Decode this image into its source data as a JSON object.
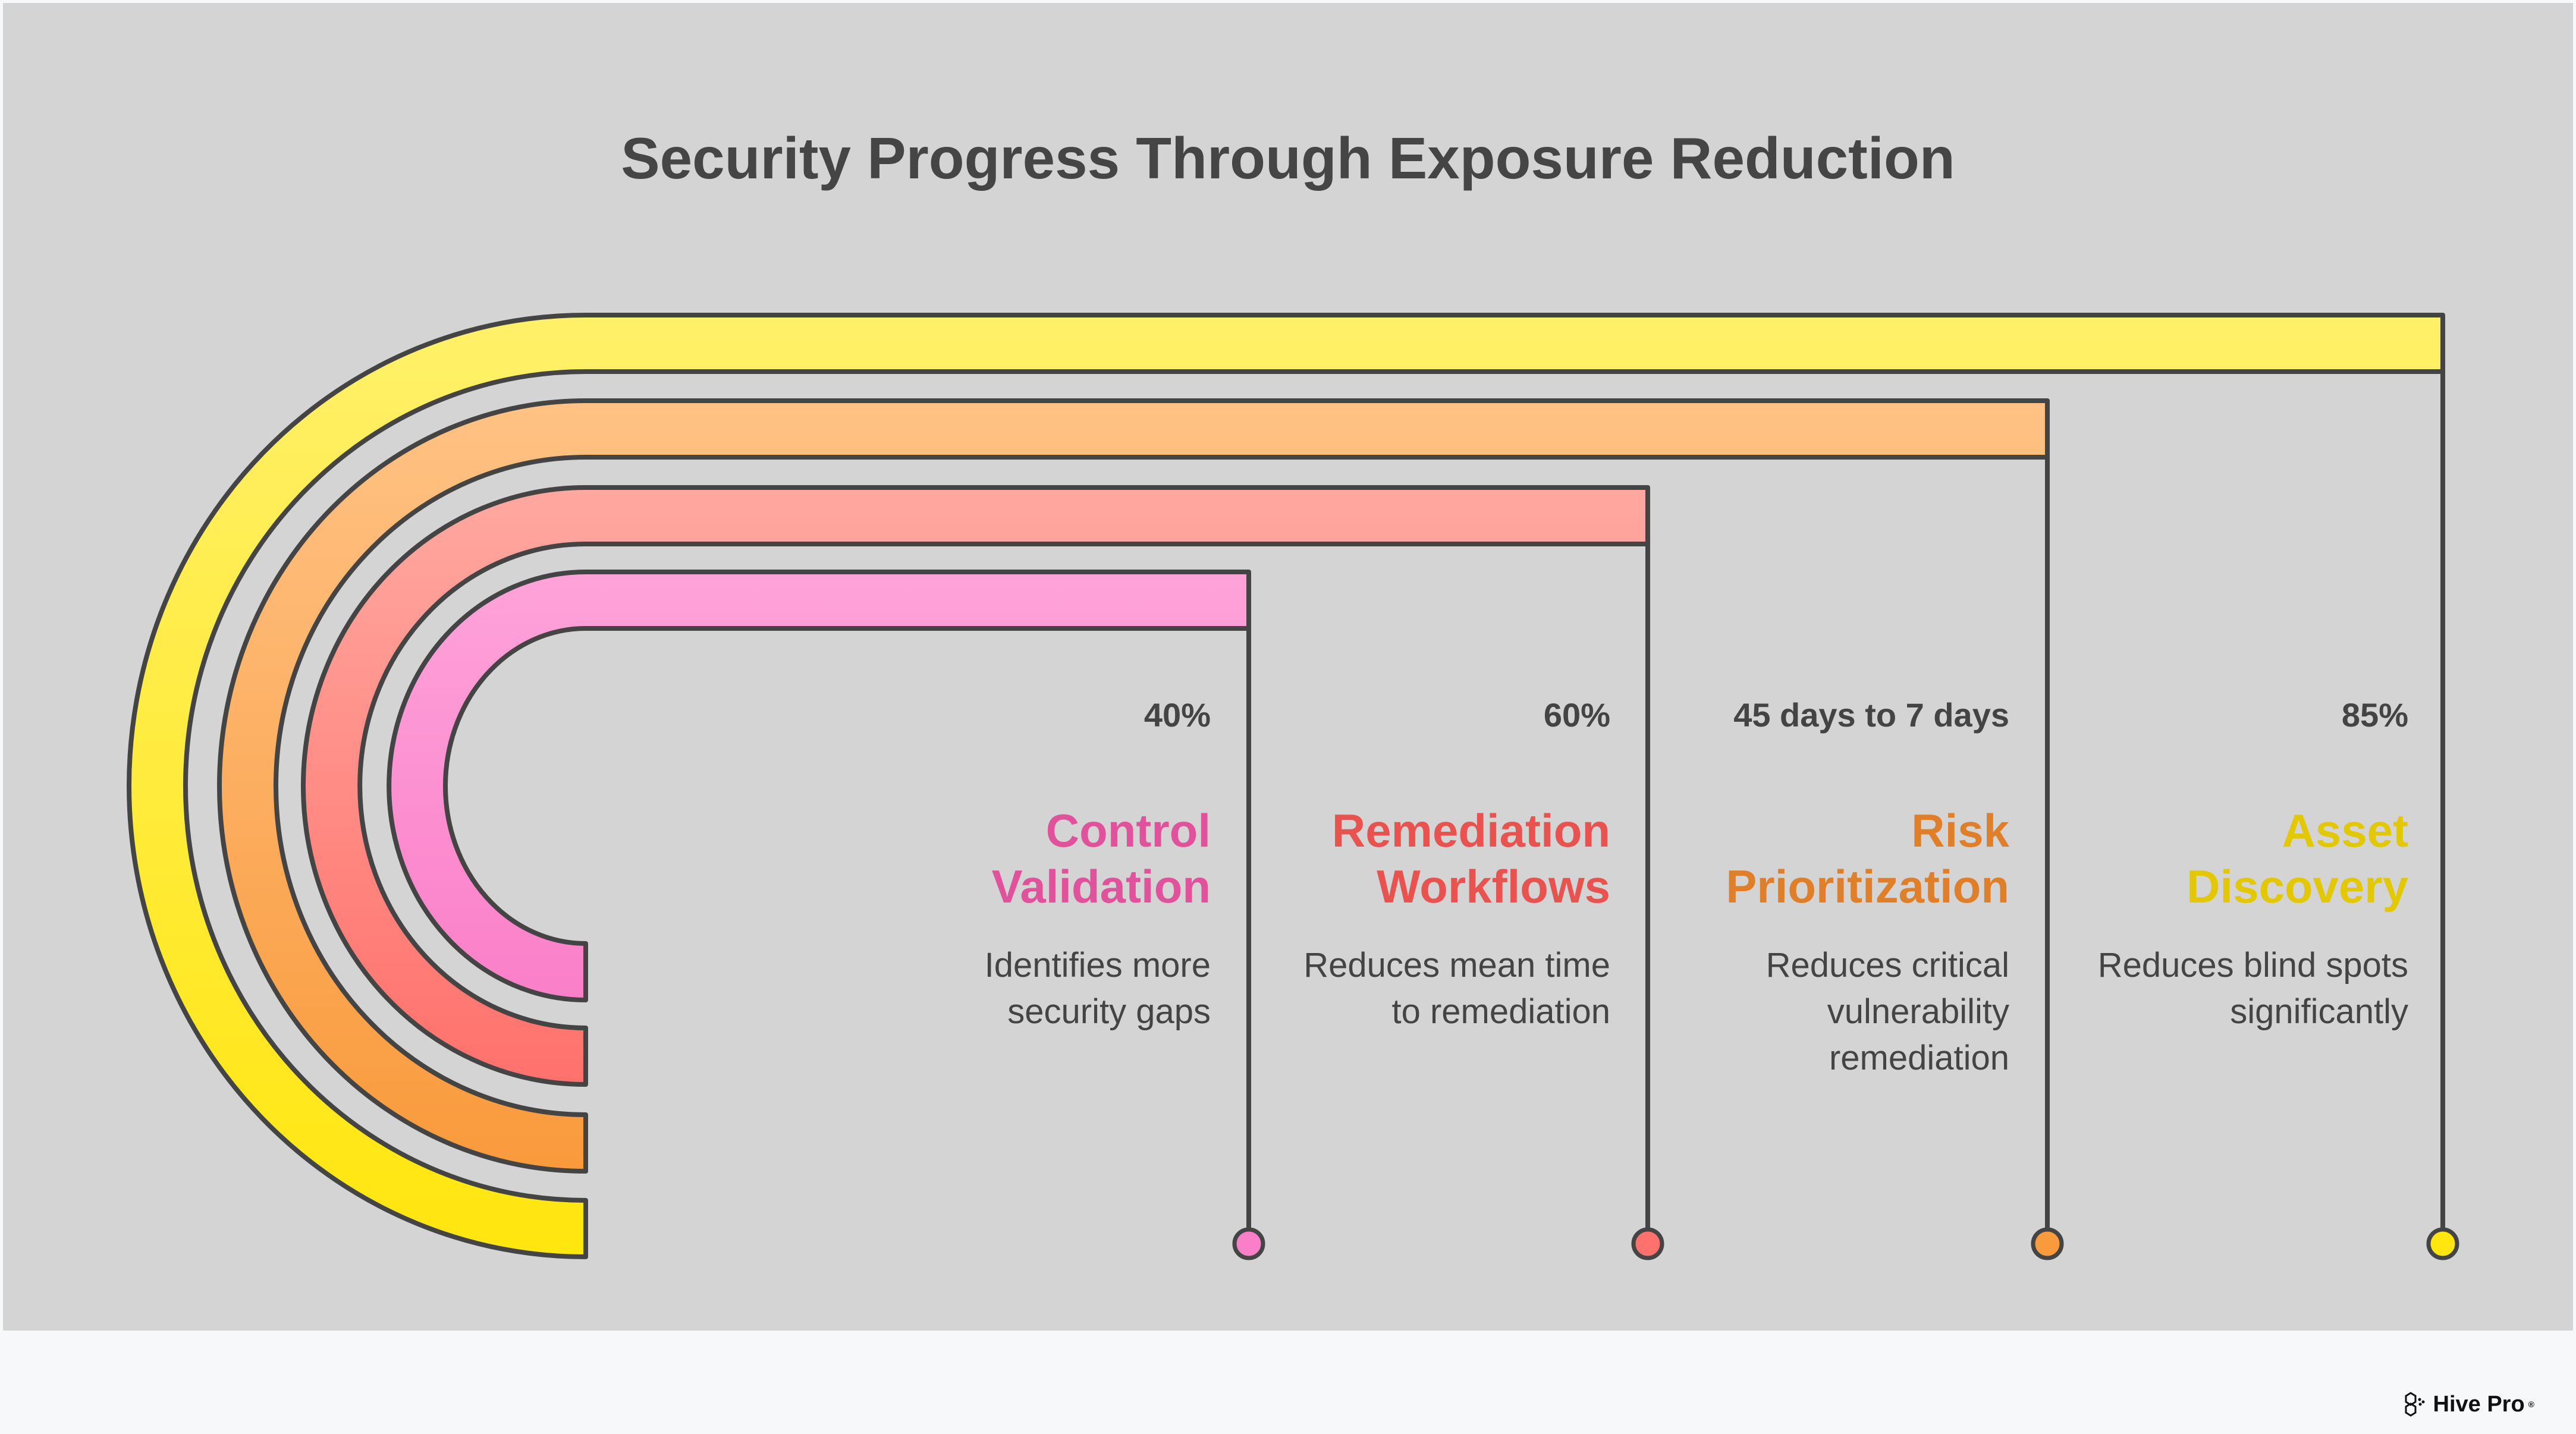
{
  "title": "Security Progress Through Exposure Reduction",
  "items": [
    {
      "metric": "40%",
      "title_lines": [
        "Control",
        "Validation"
      ],
      "desc_lines": [
        "Identifies more",
        "security gaps"
      ],
      "color": "#e0529c",
      "fill_top": "#ffa3da",
      "fill_bottom": "#fa7fc8"
    },
    {
      "metric": "60%",
      "title_lines": [
        "Remediation",
        "Workflows"
      ],
      "desc_lines": [
        "Reduces mean time",
        "to remediation"
      ],
      "color": "#e8534f",
      "fill_top": "#ffa8a0",
      "fill_bottom": "#ff716c"
    },
    {
      "metric": "45 days to 7 days",
      "title_lines": [
        "Risk",
        "Prioritization"
      ],
      "desc_lines": [
        "Reduces critical",
        "vulnerability",
        "remediation"
      ],
      "color": "#e07f2a",
      "fill_top": "#ffc284",
      "fill_bottom": "#f99a3c"
    },
    {
      "metric": "85%",
      "title_lines": [
        "Asset",
        "Discovery"
      ],
      "desc_lines": [
        "Reduces blind spots",
        "significantly"
      ],
      "color": "#e3c800",
      "fill_top": "#fff06a",
      "fill_bottom": "#ffe60e"
    }
  ],
  "logo": {
    "text": "Hive Pro",
    "mark": "®"
  }
}
